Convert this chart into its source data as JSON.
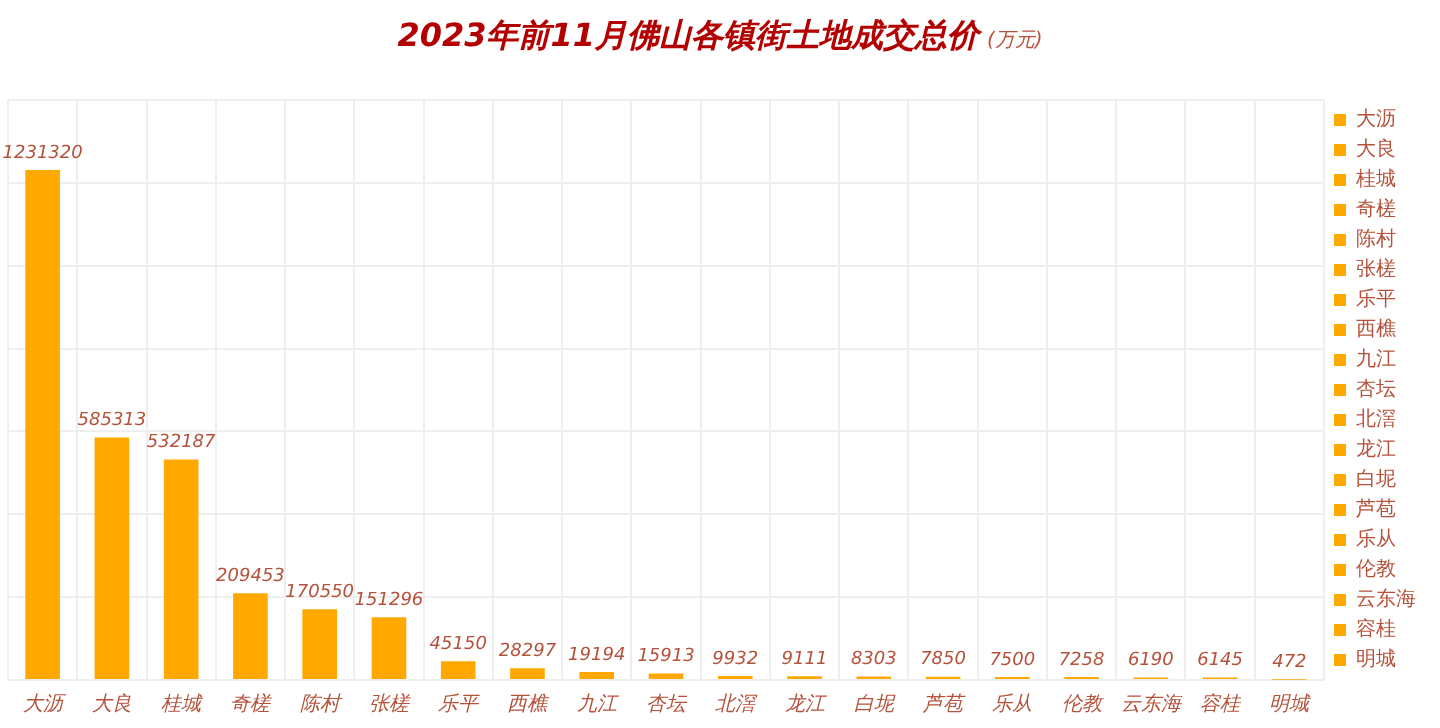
{
  "chart_data": {
    "type": "bar",
    "title": "2023年前11月佛山各镇街土地成交总价",
    "subtitle": "(万元)",
    "categories": [
      "大沥",
      "大良",
      "桂城",
      "奇槎",
      "陈村",
      "张槎",
      "乐平",
      "西樵",
      "九江",
      "杏坛",
      "北滘",
      "龙江",
      "白坭",
      "芦苞",
      "乐从",
      "伦教",
      "云东海",
      "容桂",
      "明城"
    ],
    "series": [
      {
        "name": "大沥",
        "color": "#ffa800",
        "values": [
          1231320,
          null,
          null,
          null,
          null,
          null,
          null,
          null,
          null,
          null,
          null,
          null,
          null,
          null,
          null,
          null,
          null,
          null,
          null
        ]
      },
      {
        "name": "大良",
        "color": "#ffa800",
        "values": [
          null,
          585313,
          null,
          null,
          null,
          null,
          null,
          null,
          null,
          null,
          null,
          null,
          null,
          null,
          null,
          null,
          null,
          null,
          null
        ]
      },
      {
        "name": "桂城",
        "color": "#ffa800",
        "values": [
          null,
          null,
          532187,
          null,
          null,
          null,
          null,
          null,
          null,
          null,
          null,
          null,
          null,
          null,
          null,
          null,
          null,
          null,
          null
        ]
      },
      {
        "name": "奇槎",
        "color": "#ffa800",
        "values": [
          null,
          null,
          null,
          209453,
          null,
          null,
          null,
          null,
          null,
          null,
          null,
          null,
          null,
          null,
          null,
          null,
          null,
          null,
          null
        ]
      },
      {
        "name": "陈村",
        "color": "#ffa800",
        "values": [
          null,
          null,
          null,
          null,
          170550,
          null,
          null,
          null,
          null,
          null,
          null,
          null,
          null,
          null,
          null,
          null,
          null,
          null,
          null
        ]
      },
      {
        "name": "张槎",
        "color": "#ffa800",
        "values": [
          null,
          null,
          null,
          null,
          null,
          151296,
          null,
          null,
          null,
          null,
          null,
          null,
          null,
          null,
          null,
          null,
          null,
          null,
          null
        ]
      },
      {
        "name": "乐平",
        "color": "#ffa800",
        "values": [
          null,
          null,
          null,
          null,
          null,
          null,
          45150,
          null,
          null,
          null,
          null,
          null,
          null,
          null,
          null,
          null,
          null,
          null,
          null
        ]
      },
      {
        "name": "西樵",
        "color": "#ffa800",
        "values": [
          null,
          null,
          null,
          null,
          null,
          null,
          null,
          28297,
          null,
          null,
          null,
          null,
          null,
          null,
          null,
          null,
          null,
          null,
          null
        ]
      },
      {
        "name": "九江",
        "color": "#ffa800",
        "values": [
          null,
          null,
          null,
          null,
          null,
          null,
          null,
          null,
          19194,
          null,
          null,
          null,
          null,
          null,
          null,
          null,
          null,
          null,
          null
        ]
      },
      {
        "name": "杏坛",
        "color": "#ffa800",
        "values": [
          null,
          null,
          null,
          null,
          null,
          null,
          null,
          null,
          null,
          15913,
          null,
          null,
          null,
          null,
          null,
          null,
          null,
          null,
          null
        ]
      },
      {
        "name": "北滘",
        "color": "#ffa800",
        "values": [
          null,
          null,
          null,
          null,
          null,
          null,
          null,
          null,
          null,
          null,
          9932,
          null,
          null,
          null,
          null,
          null,
          null,
          null,
          null
        ]
      },
      {
        "name": "龙江",
        "color": "#ffa800",
        "values": [
          null,
          null,
          null,
          null,
          null,
          null,
          null,
          null,
          null,
          null,
          null,
          9111,
          null,
          null,
          null,
          null,
          null,
          null,
          null
        ]
      },
      {
        "name": "白坭",
        "color": "#ffa800",
        "values": [
          null,
          null,
          null,
          null,
          null,
          null,
          null,
          null,
          null,
          null,
          null,
          null,
          8303,
          null,
          null,
          null,
          null,
          null,
          null
        ]
      },
      {
        "name": "芦苞",
        "color": "#ffa800",
        "values": [
          null,
          null,
          null,
          null,
          null,
          null,
          null,
          null,
          null,
          null,
          null,
          null,
          null,
          7850,
          null,
          null,
          null,
          null,
          null
        ]
      },
      {
        "name": "乐从",
        "color": "#ffa800",
        "values": [
          null,
          null,
          null,
          null,
          null,
          null,
          null,
          null,
          null,
          null,
          null,
          null,
          null,
          null,
          7500,
          null,
          null,
          null,
          null
        ]
      },
      {
        "name": "伦教",
        "color": "#ffa800",
        "values": [
          null,
          null,
          null,
          null,
          null,
          null,
          null,
          null,
          null,
          null,
          null,
          null,
          null,
          null,
          null,
          7258,
          null,
          null,
          null
        ]
      },
      {
        "name": "云东海",
        "color": "#ffa800",
        "values": [
          null,
          null,
          null,
          null,
          null,
          null,
          null,
          null,
          null,
          null,
          null,
          null,
          null,
          null,
          null,
          null,
          6190,
          null,
          null
        ]
      },
      {
        "name": "容桂",
        "color": "#ffa800",
        "values": [
          null,
          null,
          null,
          null,
          null,
          null,
          null,
          null,
          null,
          null,
          null,
          null,
          null,
          null,
          null,
          null,
          null,
          6145,
          null
        ]
      },
      {
        "name": "明城",
        "color": "#ffa800",
        "values": [
          null,
          null,
          null,
          null,
          null,
          null,
          null,
          null,
          null,
          null,
          null,
          null,
          null,
          null,
          null,
          null,
          null,
          null,
          472
        ]
      }
    ],
    "data_labels": true,
    "grid": true,
    "tick_labels": "x",
    "legend": "right"
  }
}
